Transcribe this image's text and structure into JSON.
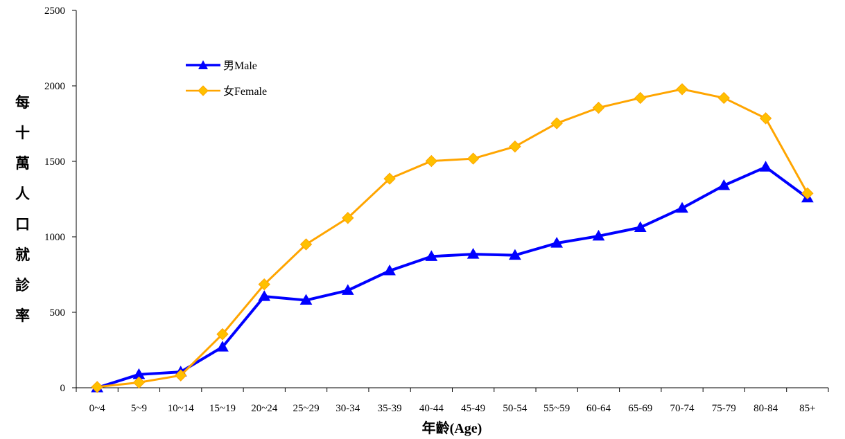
{
  "chart_data": {
    "type": "line",
    "title": "",
    "xlabel": "年齡(Age)",
    "ylabel": "每十萬人口就診率",
    "categories": [
      "0~4",
      "5~9",
      "10~14",
      "15~19",
      "20~24",
      "25~29",
      "30-34",
      "35-39",
      "40-44",
      "45-49",
      "50-54",
      "55~59",
      "60-64",
      "65-69",
      "70-74",
      "75-79",
      "80-84",
      "85+"
    ],
    "ylim": [
      0,
      2500
    ],
    "yticks": [
      "0",
      "500",
      "1000",
      "1500",
      "2000",
      "2500"
    ],
    "grid": false,
    "legend_position": "top-left",
    "series": [
      {
        "name": "男Male",
        "color": "#0000ff",
        "marker": "triangle",
        "values": [
          0,
          88,
          105,
          270,
          605,
          580,
          645,
          775,
          870,
          885,
          878,
          958,
          1005,
          1062,
          1190,
          1340,
          1462,
          1258
        ]
      },
      {
        "name": "女Female",
        "color": "#ffa500",
        "marker": "diamond",
        "values": [
          5,
          35,
          82,
          355,
          685,
          950,
          1125,
          1385,
          1502,
          1518,
          1598,
          1752,
          1855,
          1920,
          1978,
          1920,
          1785,
          1288
        ]
      }
    ]
  }
}
